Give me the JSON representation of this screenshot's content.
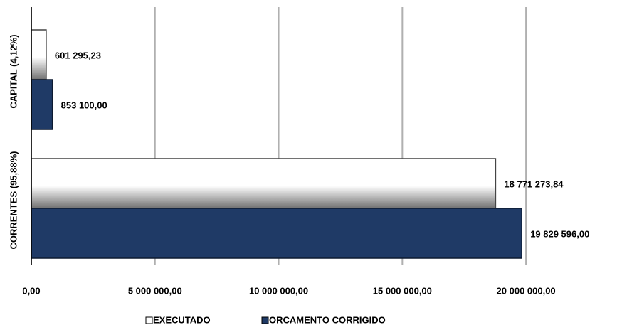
{
  "chart_data": {
    "type": "hbar",
    "categories": [
      "CAPITAL (4,12%)",
      "CORRENTES (95,88%)"
    ],
    "series": [
      {
        "name": "EXECUTADO",
        "color": "#ffffff",
        "values": [
          601295.23,
          18771273.84
        ],
        "value_labels": [
          "601 295,23",
          "18 771 273,84"
        ]
      },
      {
        "name": "ORCAMENTO CORRIGIDO",
        "color": "#1f3a66",
        "values": [
          853100.0,
          19829596.0
        ],
        "value_labels": [
          "853 100,00",
          "19 829 596,00"
        ]
      }
    ],
    "xlim": [
      0,
      22500000
    ],
    "xticks": [
      {
        "value": 0,
        "label": "0,00"
      },
      {
        "value": 5000000,
        "label": "5 000 000,00"
      },
      {
        "value": 10000000,
        "label": "10 000 000,00"
      },
      {
        "value": 15000000,
        "label": "15 000 000,00"
      },
      {
        "value": 20000000,
        "label": "20 000 000,00"
      }
    ],
    "grid": true,
    "legend": "bottom"
  }
}
